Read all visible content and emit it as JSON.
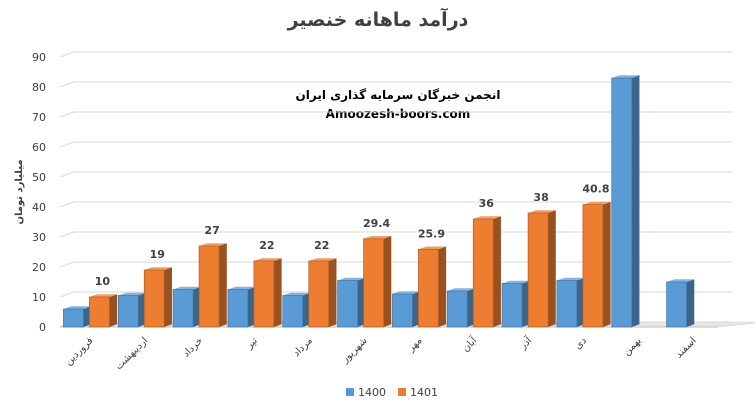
{
  "chart_data": {
    "type": "bar",
    "title": "درآمد ماهانه خنصیر",
    "ylabel": "میلیارد تومان",
    "xlabel": "",
    "ylim": [
      0,
      90
    ],
    "yticks": [
      0,
      10,
      20,
      30,
      40,
      50,
      60,
      70,
      80,
      90
    ],
    "grid": true,
    "legend_position": "bottom",
    "categories": [
      "فروردین",
      "اردیبهشت",
      "خرداد",
      "تیر",
      "مرداد",
      "شهریور",
      "مهر",
      "آبان",
      "آذر",
      "دی",
      "بهمن",
      "اسفند"
    ],
    "series": [
      {
        "name": "1400",
        "color": "#5B9BD5",
        "values": [
          6,
          10.5,
          12.5,
          12.5,
          10.5,
          15.5,
          11,
          12,
          14.5,
          15.5,
          83,
          15
        ]
      },
      {
        "name": "1401",
        "color": "#ED7D31",
        "values": [
          10,
          19,
          27,
          22,
          22,
          29.4,
          25.9,
          36,
          38,
          40.8,
          null,
          null
        ]
      }
    ],
    "data_labels": {
      "1401": [
        "10",
        "19",
        "27",
        "22",
        "22",
        "29.4",
        "25.9",
        "36",
        "38",
        "40.8",
        "",
        ""
      ]
    },
    "watermark": {
      "line1": "انجمن خبرگان سرمایه گذاری ایران",
      "line2": "Amoozesh-boors.com"
    }
  }
}
